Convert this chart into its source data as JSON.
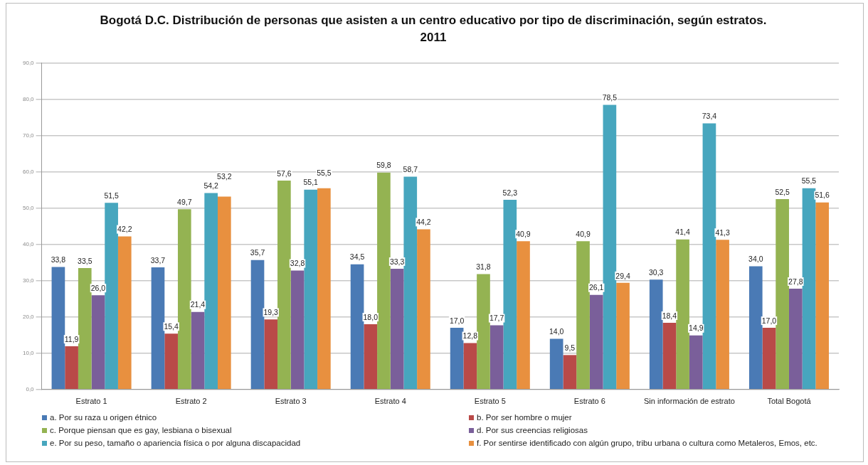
{
  "chart_data": {
    "type": "bar",
    "title": "Bogotá D.C. Distribución de personas que asisten a un centro educativo por tipo de discriminación, según estratos. 2011",
    "categories": [
      "Estrato 1",
      "Estrato 2",
      "Estrato 3",
      "Estrato 4",
      "Estrato 5",
      "Estrato 6",
      "Sin información de estrato",
      "Total Bogotá"
    ],
    "series": [
      {
        "name": "a. Por su raza u origen étnico",
        "color": "#4a7ab5",
        "values": [
          33.8,
          33.7,
          35.7,
          34.5,
          17.0,
          14.0,
          30.3,
          34.0
        ],
        "value_labels": [
          "33,8",
          "33,7",
          "35,7",
          "34,5",
          "17,0",
          "14,0",
          "30,3",
          "34,0"
        ]
      },
      {
        "name": "b. Por ser hombre o mujer",
        "color": "#b94a48",
        "values": [
          11.9,
          15.4,
          19.3,
          18.0,
          12.8,
          9.5,
          18.4,
          17.0
        ],
        "value_labels": [
          "11,9",
          "15,4",
          "19,3",
          "18,0",
          "12,8",
          "9,5",
          "18,4",
          "17,0"
        ]
      },
      {
        "name": "c. Porque piensan que es gay, lesbiana o bisexual",
        "color": "#94b352",
        "values": [
          33.5,
          49.7,
          57.6,
          59.8,
          31.8,
          40.9,
          41.4,
          52.5
        ],
        "value_labels": [
          "33,5",
          "49,7",
          "57,6",
          "59,8",
          "31,8",
          "40,9",
          "41,4",
          "52,5"
        ]
      },
      {
        "name": "d. Por sus creencias religiosas",
        "color": "#7a5f9a",
        "values": [
          26.0,
          21.4,
          32.8,
          33.3,
          17.7,
          26.1,
          14.9,
          27.8
        ],
        "value_labels": [
          "26,0",
          "21,4",
          "32,8",
          "33,3",
          "17,7",
          "26,1",
          "14,9",
          "27,8"
        ]
      },
      {
        "name": "e. Por su peso, tamaño o apariencia física o por alguna discapacidad",
        "color": "#47a6be",
        "values": [
          51.5,
          54.2,
          55.1,
          58.7,
          52.3,
          78.5,
          73.4,
          55.5
        ],
        "value_labels": [
          "51,5",
          "54,2",
          "55,1",
          "58,7",
          "52,3",
          "78,5",
          "73,4",
          "55,5"
        ]
      },
      {
        "name": "f. Por sentirse identificado con algún grupo, tribu urbana o cultura como Metaleros, Emos, etc.",
        "color": "#e8903f",
        "values": [
          42.2,
          53.2,
          55.5,
          44.2,
          40.9,
          29.4,
          41.3,
          51.6
        ],
        "value_labels": [
          "42,2",
          "53,2",
          "55,5",
          "44,2",
          "40,9",
          "29,4",
          "41,3",
          "51,6"
        ]
      }
    ],
    "ylim": [
      0,
      90
    ],
    "yticks": [
      {
        "value": 0,
        "label": "0,0"
      },
      {
        "value": 10,
        "label": "10,0"
      },
      {
        "value": 20,
        "label": "20,0"
      },
      {
        "value": 30,
        "label": "30,0"
      },
      {
        "value": 40,
        "label": "40,0"
      },
      {
        "value": 50,
        "label": "50,0"
      },
      {
        "value": 60,
        "label": "60,0"
      },
      {
        "value": 70,
        "label": "70,0"
      },
      {
        "value": 80,
        "label": "80,0"
      },
      {
        "value": 90,
        "label": "90,0"
      }
    ],
    "grid": "y",
    "legend": "bottom"
  }
}
